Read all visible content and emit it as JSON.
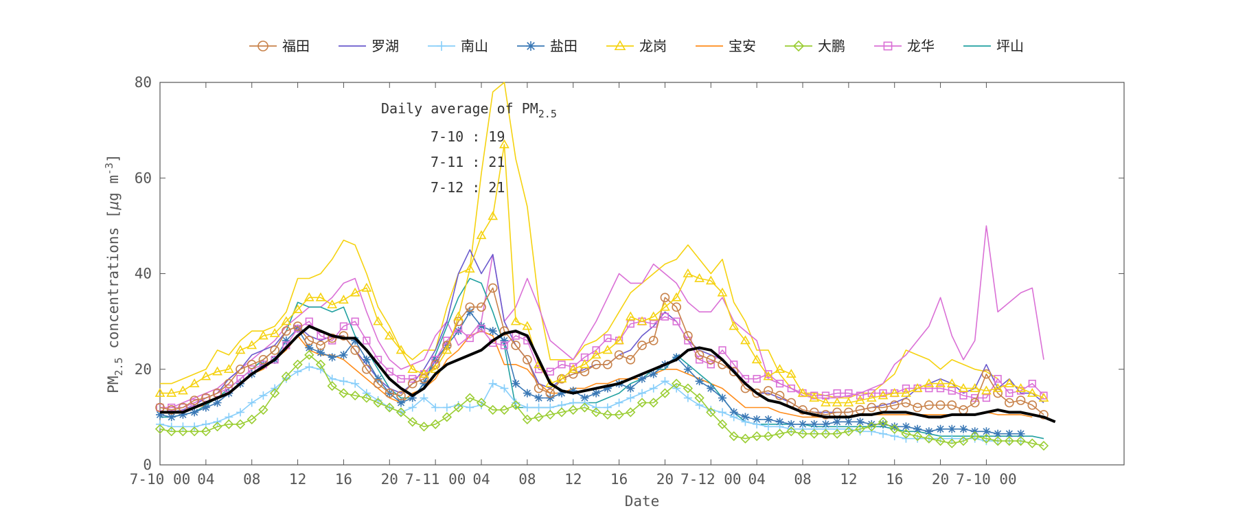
{
  "chart_data": {
    "type": "line",
    "xlabel": "Date",
    "ylabel_main": "PM",
    "ylabel_sub": "2.5",
    "ylabel_rest": " concentrations [",
    "ylabel_mu": "μ",
    "ylabel_unit": "g m",
    "ylabel_sup": "-3",
    "ylabel_close": "]",
    "ylim": [
      0,
      80
    ],
    "yticks": [
      0,
      20,
      40,
      60,
      80
    ],
    "xlim": [
      0,
      84
    ],
    "xticks": [
      {
        "pos": 0,
        "label": "7-10 00"
      },
      {
        "pos": 4,
        "label": "04"
      },
      {
        "pos": 8,
        "label": "08"
      },
      {
        "pos": 12,
        "label": "12"
      },
      {
        "pos": 16,
        "label": "16"
      },
      {
        "pos": 20,
        "label": "20"
      },
      {
        "pos": 24,
        "label": "7-11 00"
      },
      {
        "pos": 28,
        "label": "04"
      },
      {
        "pos": 32,
        "label": "08"
      },
      {
        "pos": 36,
        "label": "12"
      },
      {
        "pos": 40,
        "label": "16"
      },
      {
        "pos": 44,
        "label": "20"
      },
      {
        "pos": 48,
        "label": "7-12 00"
      },
      {
        "pos": 52,
        "label": "04"
      },
      {
        "pos": 56,
        "label": "08"
      },
      {
        "pos": 60,
        "label": "12"
      },
      {
        "pos": 64,
        "label": "16"
      },
      {
        "pos": 68,
        "label": "20"
      },
      {
        "pos": 72,
        "label": "7-10 00"
      }
    ],
    "grid": false,
    "legend_position": "top",
    "annotation": {
      "title_pre": "Daily average of PM",
      "title_sub": "2.5",
      "lines": [
        "7-10 : 19",
        "7-11 : 21",
        "7-12 : 21"
      ]
    },
    "series": [
      {
        "name": "福田",
        "color": "#c8824a",
        "marker": "circle",
        "values": [
          12,
          11.5,
          12,
          13.5,
          14,
          15,
          17,
          20,
          21,
          22,
          24,
          28,
          29,
          26,
          25,
          26.5,
          27,
          24,
          20,
          17,
          15,
          14.5,
          17,
          18,
          21,
          25,
          30,
          33,
          33,
          37,
          28,
          25,
          22,
          16,
          15,
          18,
          19,
          19.5,
          21,
          21,
          23,
          22,
          25,
          26,
          35,
          33,
          27,
          23,
          22,
          21,
          19.5,
          16,
          15,
          15.5,
          14.5,
          13,
          11.5,
          11,
          10.5,
          11,
          11,
          11.5,
          12,
          12,
          12.5,
          13,
          12,
          12.5,
          12.5,
          12.5,
          11.5,
          13,
          19,
          15,
          13,
          13.5,
          12.5,
          10.5
        ]
      },
      {
        "name": "罗湖",
        "color": "#6a5acd",
        "marker": "none",
        "values": [
          11,
          11,
          11.5,
          12.5,
          14,
          15,
          18,
          20,
          23,
          24,
          25,
          28,
          29,
          27,
          26,
          27,
          27,
          24,
          21,
          18,
          16,
          15,
          17,
          20,
          24,
          30,
          40,
          45,
          40,
          44,
          30,
          25,
          22,
          17,
          16,
          18,
          19,
          20,
          21,
          21,
          23,
          24,
          27,
          29,
          32,
          30,
          26,
          24,
          23,
          22,
          20,
          17,
          15,
          15,
          14,
          13,
          11.5,
          11,
          11,
          11,
          11,
          11.5,
          12,
          12.5,
          13,
          14,
          16,
          17,
          18,
          17,
          15,
          16,
          21,
          16,
          18,
          15,
          15,
          13
        ]
      },
      {
        "name": "南山",
        "color": "#87cefa",
        "marker": "plus",
        "values": [
          8.5,
          8,
          8,
          8,
          8.5,
          9,
          10,
          11,
          13,
          14.5,
          16,
          18,
          19.5,
          20.5,
          20,
          18,
          17.5,
          17,
          15,
          13.5,
          12,
          11,
          12,
          14,
          12,
          12,
          12.5,
          12,
          12.5,
          17,
          16,
          13,
          12,
          12,
          12,
          12.5,
          13,
          13,
          12,
          12,
          13,
          14,
          15,
          16,
          17.5,
          16,
          14,
          12.5,
          11.5,
          11,
          10,
          9,
          8.5,
          8,
          8,
          7.5,
          7.5,
          7.5,
          7.5,
          7.5,
          7.5,
          7,
          7,
          6.5,
          6,
          5.5,
          5.5,
          5.5,
          5.5,
          5.5,
          5.5,
          5.5,
          5,
          5,
          5,
          5
        ]
      },
      {
        "name": "盐田",
        "color": "#3a78b5",
        "marker": "asterisk",
        "values": [
          10.5,
          10,
          10.5,
          11,
          12,
          13,
          15,
          17,
          19,
          21,
          22,
          26,
          28.5,
          24.5,
          23.5,
          22.5,
          23,
          26,
          22,
          18,
          15,
          13,
          14,
          17,
          22,
          25,
          28,
          32,
          29,
          28,
          26,
          17,
          15,
          14,
          14,
          15,
          15.5,
          14,
          15,
          16,
          17,
          16,
          18,
          19,
          21,
          22.5,
          20,
          17.5,
          16,
          14,
          11,
          10,
          9.5,
          9.5,
          9,
          8.5,
          8.5,
          8.5,
          8.5,
          9,
          9,
          9,
          8.5,
          8.5,
          8,
          8,
          7.5,
          7,
          7.5,
          7.5,
          7.5,
          7,
          7,
          6.5,
          6.5,
          6.5
        ]
      },
      {
        "name": "龙岗",
        "color": "#f5d20f",
        "marker": "triangle",
        "values": [
          15,
          15,
          15.5,
          17,
          18.5,
          19.5,
          20,
          24,
          25,
          27,
          27.5,
          30,
          32.5,
          35,
          35,
          33.5,
          34.5,
          36,
          37,
          30,
          27,
          24,
          20,
          19,
          20,
          24,
          31,
          41,
          48,
          52,
          67,
          30,
          29,
          21,
          17,
          18,
          20,
          21,
          23,
          24,
          26,
          31,
          30,
          31,
          33,
          35,
          40,
          39,
          38.5,
          36,
          29,
          26,
          22,
          18.5,
          20,
          19,
          15,
          14,
          13,
          13,
          13,
          13.5,
          14,
          14.5,
          15,
          15,
          16,
          17,
          17,
          17,
          16,
          16,
          15.5,
          16,
          17,
          16,
          15,
          14
        ]
      },
      {
        "name": "宝安",
        "color": "#ff8c1a",
        "marker": "none",
        "values": [
          11,
          11,
          11.5,
          12,
          12.5,
          14,
          15,
          17,
          19,
          20,
          22,
          24,
          27,
          24,
          23,
          23,
          22,
          20,
          18,
          16,
          14,
          13,
          15,
          16,
          18,
          22,
          24,
          27,
          28,
          27,
          21,
          21,
          20,
          17,
          15,
          15,
          16,
          16,
          17,
          17,
          18,
          18,
          18,
          19,
          20,
          20,
          19,
          18,
          17,
          16,
          14,
          12,
          12,
          12,
          11,
          10.5,
          10,
          10,
          10,
          10,
          10,
          10.5,
          10.5,
          10.5,
          10.5,
          10.5,
          10.5,
          10.5,
          10.5,
          10.5,
          10.5,
          10.5,
          11,
          10.5,
          10.5,
          10.5,
          10
        ]
      },
      {
        "name": "大鹏",
        "color": "#9acd32",
        "marker": "diamond",
        "values": [
          7.5,
          7,
          7,
          7,
          7,
          8,
          8.5,
          8.5,
          9.5,
          11.5,
          15,
          18.5,
          21,
          23,
          21,
          16.5,
          15,
          14.5,
          14,
          13,
          12,
          11,
          9,
          8,
          8.5,
          10,
          12,
          14,
          13,
          11.5,
          11.5,
          12.5,
          9.5,
          10,
          10.5,
          11,
          11.5,
          12,
          11,
          10.5,
          10.5,
          11,
          13,
          13,
          15,
          17,
          16,
          14,
          11,
          8.5,
          6,
          5.5,
          6,
          6,
          6.5,
          7,
          6.5,
          6.5,
          6.5,
          6.5,
          7,
          7.5,
          8,
          9,
          7.5,
          6.5,
          6,
          5.5,
          5,
          4.5,
          5,
          6,
          5.5,
          5,
          5,
          5,
          4.5,
          4
        ]
      },
      {
        "name": "龙华",
        "color": "#da70d6",
        "marker": "square",
        "values": [
          12,
          12,
          12,
          13,
          14,
          15,
          16,
          18,
          20,
          21,
          22,
          25,
          28.5,
          30,
          27,
          26,
          29,
          30,
          26,
          22,
          19.5,
          18,
          18,
          19,
          22,
          26,
          28.5,
          26.5,
          28.5,
          25.5,
          25,
          27,
          26,
          20,
          19.5,
          21,
          20.5,
          22.5,
          24,
          26.5,
          26,
          29.5,
          30,
          29.5,
          31,
          30,
          26,
          22,
          21,
          24,
          21,
          18,
          18,
          19,
          17,
          16,
          15,
          14.5,
          14.5,
          15,
          15,
          14.5,
          15,
          15,
          15,
          16,
          16,
          16,
          16,
          15.5,
          14.5,
          14,
          14,
          18,
          15,
          15.5,
          17,
          14.5
        ]
      },
      {
        "name": "坪山",
        "color": "#20a0a0",
        "marker": "none",
        "values": [
          10,
          10,
          10.5,
          11,
          12.5,
          14,
          16,
          18,
          20,
          22,
          24,
          28,
          34,
          33,
          33,
          32,
          33,
          27,
          24,
          20,
          16,
          14,
          14,
          17,
          23,
          29,
          35,
          39,
          38,
          32,
          25,
          12,
          12,
          12,
          12,
          12.5,
          13,
          13,
          13,
          14,
          15,
          17,
          18,
          20,
          20,
          23,
          21,
          19,
          17,
          14,
          11,
          9,
          8.5,
          8.5,
          8.5,
          8.5,
          8.5,
          8,
          8,
          8,
          8,
          8,
          8,
          8,
          7.5,
          7,
          7,
          6.5,
          6,
          6,
          6,
          6,
          6,
          6,
          6,
          6,
          6,
          5.5
        ]
      },
      {
        "name": "",
        "color": "#f5d20f",
        "marker": "none",
        "values": [
          17,
          17,
          18,
          19,
          20,
          24,
          23,
          26,
          28,
          28,
          29,
          32,
          39,
          39,
          40,
          43,
          47,
          46,
          40,
          33,
          29,
          24,
          22,
          24,
          24,
          33,
          40,
          41,
          61,
          78,
          80,
          64,
          54,
          34,
          22,
          22,
          22,
          25,
          26,
          28,
          32,
          36,
          38,
          40,
          42,
          43,
          46,
          43,
          40,
          43,
          34,
          30,
          24,
          24,
          19,
          16,
          15,
          15,
          14.5,
          14,
          14,
          15,
          15,
          17,
          19,
          24,
          23,
          22,
          20,
          22,
          21,
          20,
          19.5,
          18
        ]
      },
      {
        "name": "",
        "color": "#da70d6",
        "marker": "none",
        "values": [
          12,
          12,
          13,
          14,
          15,
          16,
          18,
          20,
          22,
          24,
          26,
          29,
          31,
          33,
          33,
          35,
          38,
          39,
          32,
          26,
          22,
          20,
          21,
          22,
          27,
          30,
          25,
          27,
          30,
          44,
          30,
          33,
          39,
          33,
          26,
          24,
          22,
          26,
          30,
          35,
          40,
          38,
          38,
          42,
          40,
          38,
          34,
          32,
          32,
          35,
          30,
          28,
          26,
          18,
          17,
          16,
          14.5,
          14,
          14,
          14,
          14.5,
          15,
          16,
          17,
          21,
          23,
          26,
          29,
          35,
          27,
          22,
          26,
          50,
          32,
          34,
          36,
          37,
          22
        ]
      },
      {
        "name": "",
        "color": "#000000",
        "marker": "none",
        "width": 4,
        "values": [
          11,
          11,
          11,
          12,
          13,
          14,
          15,
          17,
          19,
          20.5,
          22,
          24.5,
          27,
          29,
          28,
          27,
          26.5,
          26.5,
          24,
          21,
          18,
          16,
          14.5,
          16,
          19,
          21,
          22,
          23,
          24,
          26,
          27.5,
          28,
          27,
          22,
          17,
          15.5,
          15,
          15.5,
          16,
          16.5,
          17,
          18,
          19,
          20,
          21,
          22,
          24,
          24.5,
          24,
          22,
          19.5,
          17,
          15,
          13.5,
          13,
          12,
          11,
          10.5,
          10,
          10,
          10,
          10.5,
          10.5,
          11,
          11,
          11,
          10.5,
          10,
          10,
          10.5,
          10.5,
          10.5,
          11,
          11.5,
          11,
          11,
          10.5,
          10,
          9
        ]
      }
    ]
  }
}
